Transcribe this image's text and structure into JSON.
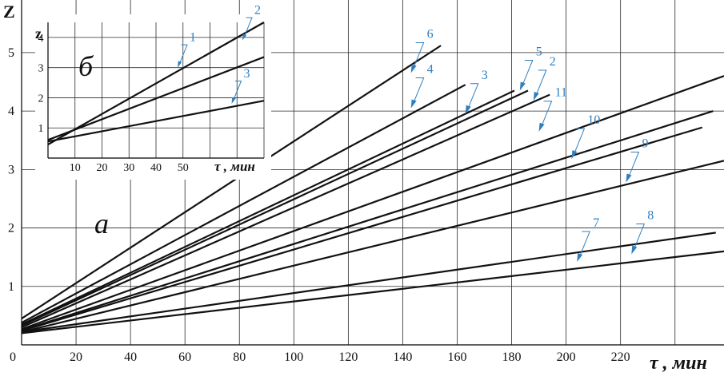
{
  "chart_data": [
    {
      "id": "main",
      "type": "line",
      "panel_label": "а",
      "xlabel": "τ , мин",
      "ylabel": "Z",
      "xlim": [
        0,
        258
      ],
      "ylim": [
        0,
        5.9
      ],
      "grid": true,
      "x_ticks": [
        0,
        20,
        40,
        60,
        80,
        100,
        120,
        140,
        160,
        180,
        200,
        220
      ],
      "x_tick_labels": [
        "0",
        "20",
        "40",
        "60",
        "80",
        "100",
        "120",
        "140",
        "160",
        "180",
        "200",
        "220"
      ],
      "y_ticks": [
        1,
        2,
        3,
        4,
        5
      ],
      "y_tick_labels": [
        "1",
        "2",
        "3",
        "4",
        "5"
      ],
      "series": [
        {
          "name": "6",
          "x": [
            0,
            154
          ],
          "y": [
            0.45,
            5.12
          ]
        },
        {
          "name": "4",
          "x": [
            0,
            163
          ],
          "y": [
            0.38,
            4.45
          ]
        },
        {
          "name": "3",
          "x": [
            0,
            181
          ],
          "y": [
            0.35,
            4.35
          ]
        },
        {
          "name": "5",
          "x": [
            0,
            186
          ],
          "y": [
            0.33,
            4.35
          ]
        },
        {
          "name": "2",
          "x": [
            0,
            194
          ],
          "y": [
            0.3,
            4.28
          ]
        },
        {
          "name": "11",
          "x": [
            0,
            258
          ],
          "y": [
            0.27,
            4.6
          ]
        },
        {
          "name": "10",
          "x": [
            0,
            254
          ],
          "y": [
            0.25,
            4.0
          ]
        },
        {
          "name": "",
          "x": [
            0,
            250
          ],
          "y": [
            0.24,
            3.72
          ]
        },
        {
          "name": "9",
          "x": [
            0,
            258
          ],
          "y": [
            0.22,
            3.15
          ]
        },
        {
          "name": "7",
          "x": [
            0,
            255
          ],
          "y": [
            0.22,
            1.92
          ]
        },
        {
          "name": "8",
          "x": [
            0,
            258
          ],
          "y": [
            0.2,
            1.6
          ]
        }
      ],
      "callouts": [
        {
          "label": "6",
          "x": 143,
          "y": 4.65
        },
        {
          "label": "4",
          "x": 143,
          "y": 4.05
        },
        {
          "label": "3",
          "x": 163,
          "y": 3.95
        },
        {
          "label": "5",
          "x": 183,
          "y": 4.35
        },
        {
          "label": "2",
          "x": 188,
          "y": 4.18
        },
        {
          "label": "11",
          "x": 190,
          "y": 3.65
        },
        {
          "label": "10",
          "x": 202,
          "y": 3.18
        },
        {
          "label": "9",
          "x": 222,
          "y": 2.78
        },
        {
          "label": "7",
          "x": 204,
          "y": 1.42
        },
        {
          "label": "8",
          "x": 224,
          "y": 1.55
        }
      ]
    },
    {
      "id": "inset",
      "type": "line",
      "panel_label": "б",
      "xlabel": "τ , мин",
      "ylabel": "z",
      "xlim": [
        0,
        80
      ],
      "ylim": [
        0,
        4.5
      ],
      "grid": true,
      "x_ticks": [
        10,
        20,
        30,
        40,
        50
      ],
      "x_tick_labels": [
        "10",
        "20",
        "30",
        "40",
        "50"
      ],
      "y_ticks": [
        1,
        2,
        3,
        4
      ],
      "y_tick_labels": [
        "1",
        "2",
        "3",
        "4"
      ],
      "series": [
        {
          "name": "1",
          "x": [
            0,
            80
          ],
          "y": [
            0.6,
            3.35
          ]
        },
        {
          "name": "2",
          "x": [
            0,
            80
          ],
          "y": [
            0.45,
            4.5
          ]
        },
        {
          "name": "3",
          "x": [
            0,
            80
          ],
          "y": [
            0.55,
            1.9
          ]
        }
      ],
      "callouts": [
        {
          "label": "1",
          "x": 48,
          "y": 3.0
        },
        {
          "label": "2",
          "x": 72,
          "y": 3.9
        },
        {
          "label": "3",
          "x": 68,
          "y": 1.8
        }
      ]
    }
  ]
}
